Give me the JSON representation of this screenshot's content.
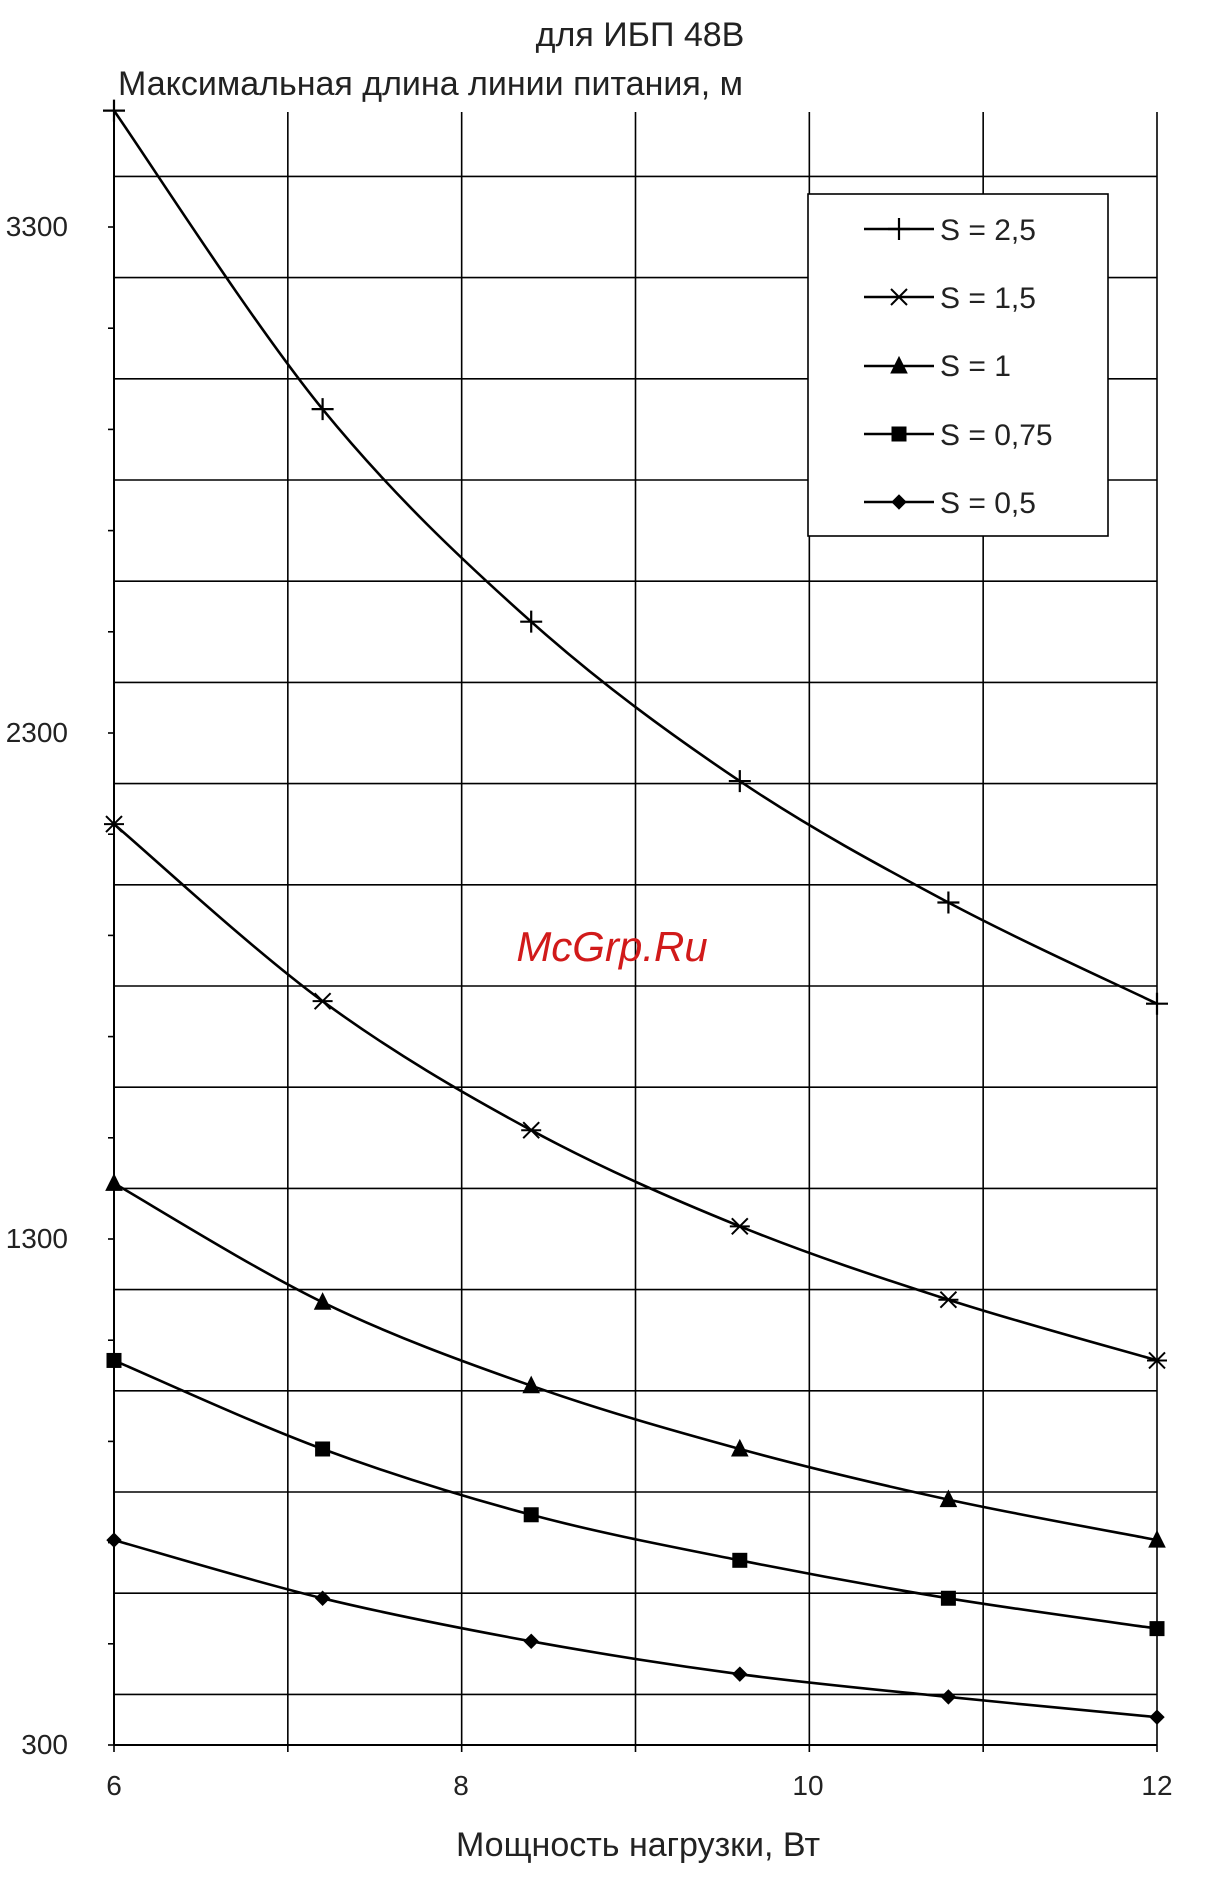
{
  "chart_data": {
    "type": "line",
    "title": "для ИБП 48В",
    "subtitle": "Максимальная длина линии питания, м",
    "xlabel": "Мощность нагрузки, Вт",
    "ylabel": "",
    "x": [
      6,
      7.2,
      8.4,
      9.6,
      10.8,
      12
    ],
    "xlim": [
      6,
      12
    ],
    "ylim": [
      300,
      3530
    ],
    "x_ticks": [
      "6",
      "8",
      "10",
      "12"
    ],
    "y_ticks": [
      "3300",
      "2300",
      "1300",
      "300"
    ],
    "grid": true,
    "legend_position": "top-right",
    "series": [
      {
        "name": "S = 2,5",
        "marker": "plus",
        "values": [
          3530,
          2940,
          2520,
          2205,
          1965,
          1765
        ]
      },
      {
        "name": "S = 1,5",
        "marker": "asterisk",
        "values": [
          2120,
          1770,
          1515,
          1325,
          1180,
          1060
        ]
      },
      {
        "name": "S = 1",
        "marker": "triangle",
        "values": [
          1410,
          1175,
          1010,
          885,
          785,
          705
        ]
      },
      {
        "name": "S = 0,75",
        "marker": "square",
        "values": [
          1060,
          885,
          755,
          665,
          590,
          530
        ]
      },
      {
        "name": "S = 0,5",
        "marker": "diamond",
        "values": [
          705,
          590,
          505,
          440,
          395,
          355
        ]
      }
    ],
    "watermark": "McGrp.Ru"
  }
}
